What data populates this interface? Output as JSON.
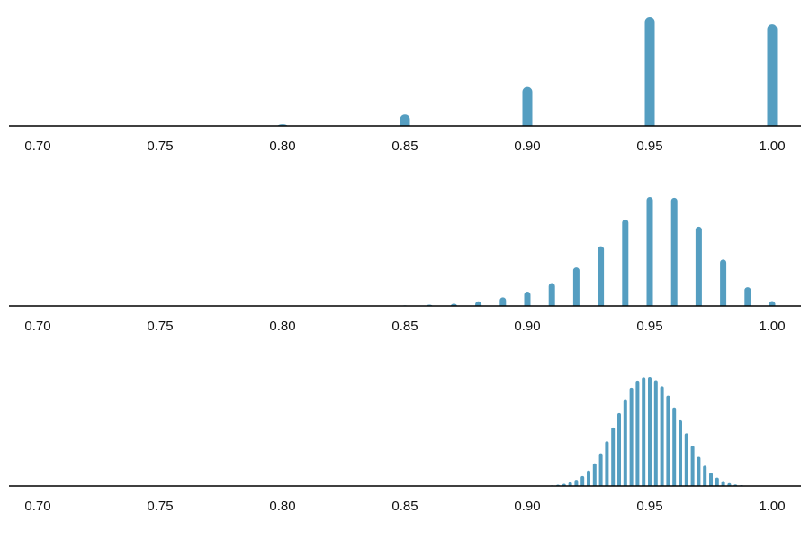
{
  "colors": {
    "bar": "#559ec1",
    "axis": "#000000"
  },
  "chart_data": [
    {
      "type": "bar",
      "xlim": [
        0.7,
        1.0
      ],
      "xticks": [
        0.7,
        0.75,
        0.8,
        0.85,
        0.9,
        0.95,
        1.0
      ],
      "xtick_labels": [
        "0.70",
        "0.75",
        "0.80",
        "0.85",
        "0.90",
        "0.95",
        "1.00"
      ],
      "x": [
        0.7,
        0.75,
        0.8,
        0.85,
        0.9,
        0.95,
        1.0
      ],
      "values": [
        2e-05,
        0.0003,
        0.0031,
        0.0214,
        0.0729,
        0.2036,
        0.19
      ]
    },
    {
      "type": "bar",
      "xlim": [
        0.7,
        1.0
      ],
      "xticks": [
        0.7,
        0.75,
        0.8,
        0.85,
        0.9,
        0.95,
        1.0
      ],
      "xtick_labels": [
        "0.70",
        "0.75",
        "0.80",
        "0.85",
        "0.90",
        "0.95",
        "1.00"
      ],
      "x": [
        0.85,
        0.86,
        0.87,
        0.88,
        0.89,
        0.9,
        0.91,
        0.92,
        0.93,
        0.94,
        0.95,
        0.96,
        0.97,
        0.98,
        0.99,
        1.0
      ],
      "values": [
        0.0008,
        0.0016,
        0.0029,
        0.0057,
        0.0104,
        0.0174,
        0.0276,
        0.0465,
        0.0719,
        0.1041,
        0.1311,
        0.1302,
        0.0955,
        0.0559,
        0.0226,
        0.0059
      ]
    },
    {
      "type": "bar",
      "xlim": [
        0.7,
        1.0
      ],
      "xticks": [
        0.7,
        0.75,
        0.8,
        0.85,
        0.9,
        0.95,
        1.0
      ],
      "xtick_labels": [
        "0.70",
        "0.75",
        "0.80",
        "0.85",
        "0.90",
        "0.95",
        "1.00"
      ],
      "x": [
        0.91,
        0.9125,
        0.915,
        0.9175,
        0.92,
        0.9225,
        0.925,
        0.9275,
        0.93,
        0.9325,
        0.935,
        0.9375,
        0.94,
        0.9425,
        0.945,
        0.9475,
        0.95,
        0.9525,
        0.955,
        0.9575,
        0.96,
        0.9625,
        0.965,
        0.9675,
        0.97,
        0.9725,
        0.975,
        0.9775,
        0.98,
        0.9825,
        0.985,
        0.9875,
        0.99
      ],
      "values": [
        0.0004,
        0.0008,
        0.0013,
        0.0022,
        0.0036,
        0.0058,
        0.009,
        0.0132,
        0.019,
        0.026,
        0.034,
        0.0424,
        0.0504,
        0.057,
        0.0612,
        0.063,
        0.0632,
        0.0614,
        0.0578,
        0.0524,
        0.0456,
        0.0382,
        0.0306,
        0.0234,
        0.017,
        0.0118,
        0.0078,
        0.0049,
        0.0029,
        0.0017,
        0.0009,
        0.0005,
        0.0002
      ]
    }
  ]
}
